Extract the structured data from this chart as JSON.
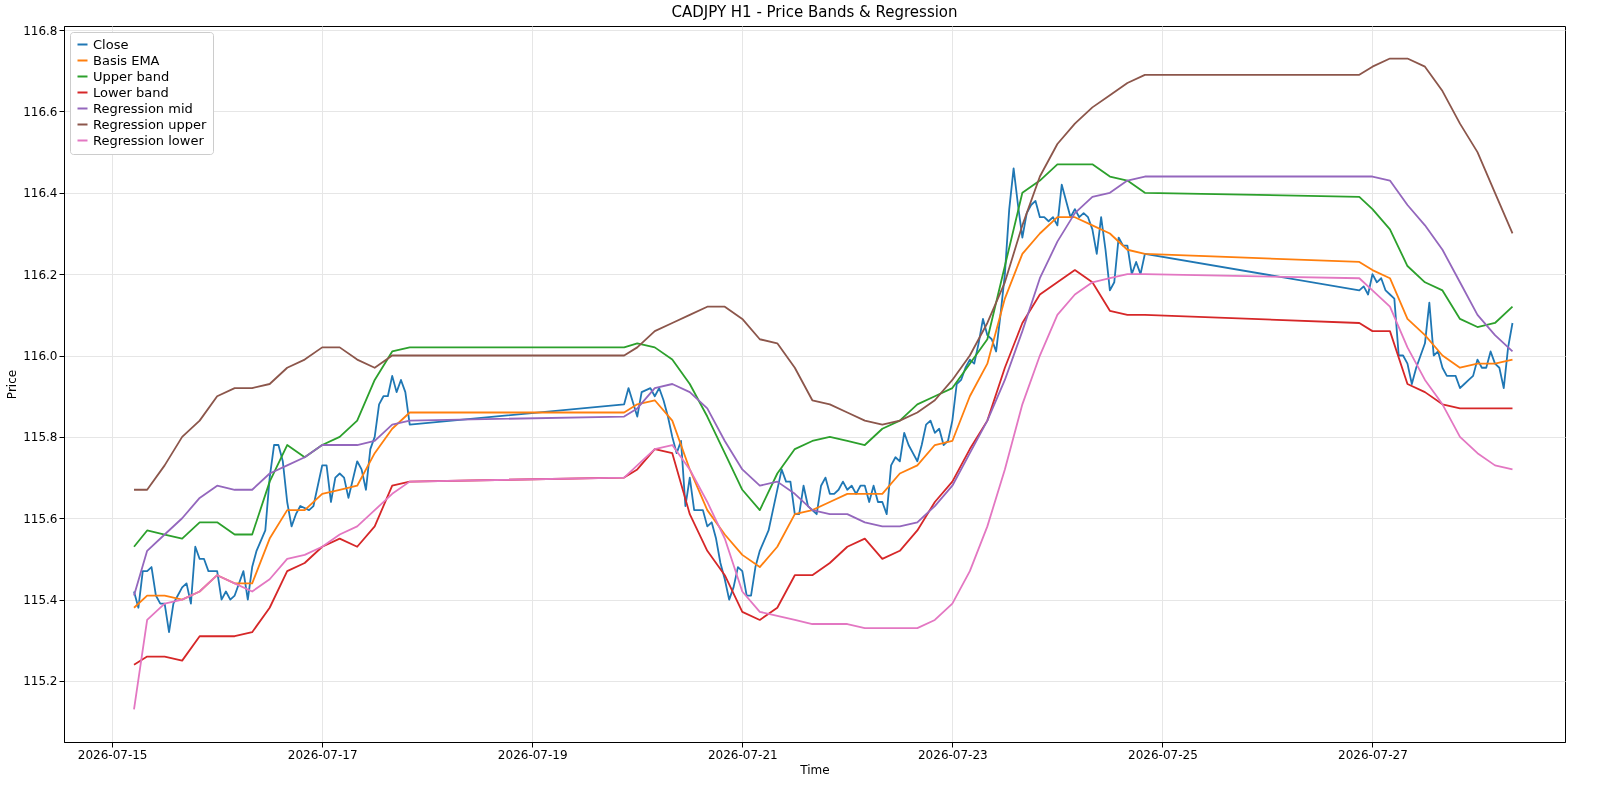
{
  "chart_data": {
    "type": "line",
    "title": "CADJPY H1 - Price Bands & Regression",
    "xlabel": "Time",
    "ylabel": "Price",
    "xlim": [
      "2026-07-14T13:00",
      "2026-07-28T20:00"
    ],
    "ylim": [
      115.05,
      116.81
    ],
    "xticks": [
      "2026-07-15",
      "2026-07-17",
      "2026-07-19",
      "2026-07-21",
      "2026-07-23",
      "2026-07-25",
      "2026-07-27"
    ],
    "yticks": [
      115.2,
      115.4,
      115.6,
      115.8,
      {
        "value": 116.0,
        "label": "116.0"
      },
      116.2,
      116.4,
      116.6,
      116.8
    ],
    "grid": true,
    "legend": "top left",
    "x": [
      "2026-07-15T05:00",
      "2026-07-15T08:00",
      "2026-07-15T12:00",
      "2026-07-15T16:00",
      "2026-07-15T20:00",
      "2026-07-16T00:00",
      "2026-07-16T04:00",
      "2026-07-16T08:00",
      "2026-07-16T12:00",
      "2026-07-16T16:00",
      "2026-07-16T20:00",
      "2026-07-17T00:00",
      "2026-07-17T04:00",
      "2026-07-17T08:00",
      "2026-07-17T12:00",
      "2026-07-17T16:00",
      "2026-07-17T20:00",
      "2026-07-19T21:00",
      "2026-07-20T00:00",
      "2026-07-20T04:00",
      "2026-07-20T08:00",
      "2026-07-20T12:00",
      "2026-07-20T16:00",
      "2026-07-20T20:00",
      "2026-07-21T00:00",
      "2026-07-21T04:00",
      "2026-07-21T08:00",
      "2026-07-21T12:00",
      "2026-07-21T16:00",
      "2026-07-21T20:00",
      "2026-07-22T00:00",
      "2026-07-22T04:00",
      "2026-07-22T08:00",
      "2026-07-22T12:00",
      "2026-07-22T16:00",
      "2026-07-22T20:00",
      "2026-07-23T00:00",
      "2026-07-23T04:00",
      "2026-07-23T08:00",
      "2026-07-23T12:00",
      "2026-07-23T16:00",
      "2026-07-23T20:00",
      "2026-07-24T00:00",
      "2026-07-24T04:00",
      "2026-07-24T08:00",
      "2026-07-24T12:00",
      "2026-07-24T16:00",
      "2026-07-24T20:00",
      "2026-07-26T21:00",
      "2026-07-27T00:00",
      "2026-07-27T04:00",
      "2026-07-27T08:00",
      "2026-07-27T12:00",
      "2026-07-27T16:00",
      "2026-07-27T20:00",
      "2026-07-28T00:00",
      "2026-07-28T04:00",
      "2026-07-28T08:00"
    ],
    "series": [
      {
        "name": "Close",
        "color": "#1f77b4",
        "x": [
          "2026-07-15T05:00",
          "2026-07-15T06:00",
          "2026-07-15T07:00",
          "2026-07-15T08:00",
          "2026-07-15T09:00",
          "2026-07-15T10:00",
          "2026-07-15T11:00",
          "2026-07-15T12:00",
          "2026-07-15T13:00",
          "2026-07-15T14:00",
          "2026-07-15T15:00",
          "2026-07-15T16:00",
          "2026-07-15T17:00",
          "2026-07-15T18:00",
          "2026-07-15T19:00",
          "2026-07-15T20:00",
          "2026-07-15T21:00",
          "2026-07-15T22:00",
          "2026-07-16T00:00",
          "2026-07-16T01:00",
          "2026-07-16T02:00",
          "2026-07-16T03:00",
          "2026-07-16T04:00",
          "2026-07-16T06:00",
          "2026-07-16T07:00",
          "2026-07-16T08:00",
          "2026-07-16T09:00",
          "2026-07-16T11:00",
          "2026-07-16T12:00",
          "2026-07-16T13:00",
          "2026-07-16T14:00",
          "2026-07-16T15:00",
          "2026-07-16T16:00",
          "2026-07-16T17:00",
          "2026-07-16T18:00",
          "2026-07-16T19:00",
          "2026-07-16T21:00",
          "2026-07-16T22:00",
          "2026-07-17T00:00",
          "2026-07-17T01:00",
          "2026-07-17T02:00",
          "2026-07-17T03:00",
          "2026-07-17T04:00",
          "2026-07-17T05:00",
          "2026-07-17T06:00",
          "2026-07-17T08:00",
          "2026-07-17T09:00",
          "2026-07-17T10:00",
          "2026-07-17T11:00",
          "2026-07-17T12:00",
          "2026-07-17T13:00",
          "2026-07-17T14:00",
          "2026-07-17T15:00",
          "2026-07-17T16:00",
          "2026-07-17T17:00",
          "2026-07-17T18:00",
          "2026-07-17T19:00",
          "2026-07-17T20:00",
          "2026-07-19T21:00",
          "2026-07-19T22:00",
          "2026-07-20T00:00",
          "2026-07-20T01:00",
          "2026-07-20T03:00",
          "2026-07-20T04:00",
          "2026-07-20T05:00",
          "2026-07-20T06:00",
          "2026-07-20T07:00",
          "2026-07-20T08:00",
          "2026-07-20T09:00",
          "2026-07-20T10:00",
          "2026-07-20T11:00",
          "2026-07-20T12:00",
          "2026-07-20T13:00",
          "2026-07-20T14:00",
          "2026-07-20T15:00",
          "2026-07-20T16:00",
          "2026-07-20T17:00",
          "2026-07-20T18:00",
          "2026-07-20T19:00",
          "2026-07-20T20:00",
          "2026-07-20T21:00",
          "2026-07-20T22:00",
          "2026-07-20T23:00",
          "2026-07-21T00:00",
          "2026-07-21T01:00",
          "2026-07-21T02:00",
          "2026-07-21T03:00",
          "2026-07-21T04:00",
          "2026-07-21T06:00",
          "2026-07-21T07:00",
          "2026-07-21T09:00",
          "2026-07-21T10:00",
          "2026-07-21T11:00",
          "2026-07-21T12:00",
          "2026-07-21T13:00",
          "2026-07-21T14:00",
          "2026-07-21T15:00",
          "2026-07-21T16:00",
          "2026-07-21T17:00",
          "2026-07-21T18:00",
          "2026-07-21T19:00",
          "2026-07-21T20:00",
          "2026-07-21T21:00",
          "2026-07-21T22:00",
          "2026-07-21T23:00",
          "2026-07-22T00:00",
          "2026-07-22T01:00",
          "2026-07-22T02:00",
          "2026-07-22T03:00",
          "2026-07-22T04:00",
          "2026-07-22T05:00",
          "2026-07-22T06:00",
          "2026-07-22T07:00",
          "2026-07-22T08:00",
          "2026-07-22T09:00",
          "2026-07-22T10:00",
          "2026-07-22T11:00",
          "2026-07-22T12:00",
          "2026-07-22T13:00",
          "2026-07-22T14:00",
          "2026-07-22T15:00",
          "2026-07-22T16:00",
          "2026-07-22T17:00",
          "2026-07-22T18:00",
          "2026-07-22T19:00",
          "2026-07-22T20:00",
          "2026-07-22T21:00",
          "2026-07-22T22:00",
          "2026-07-22T23:00",
          "2026-07-23T00:00",
          "2026-07-23T01:00",
          "2026-07-23T02:00",
          "2026-07-23T03:00",
          "2026-07-23T04:00",
          "2026-07-23T05:00",
          "2026-07-23T06:00",
          "2026-07-23T07:00",
          "2026-07-23T08:00",
          "2026-07-23T09:00",
          "2026-07-23T10:00",
          "2026-07-23T11:00",
          "2026-07-23T12:00",
          "2026-07-23T13:00",
          "2026-07-23T14:00",
          "2026-07-23T15:00",
          "2026-07-23T16:00",
          "2026-07-23T17:00",
          "2026-07-23T18:00",
          "2026-07-23T19:00",
          "2026-07-23T20:00",
          "2026-07-23T21:00",
          "2026-07-23T22:00",
          "2026-07-23T23:00",
          "2026-07-24T00:00",
          "2026-07-24T01:00",
          "2026-07-24T02:00",
          "2026-07-24T03:00",
          "2026-07-24T04:00",
          "2026-07-24T05:00",
          "2026-07-24T06:00",
          "2026-07-24T07:00",
          "2026-07-24T08:00",
          "2026-07-24T09:00",
          "2026-07-24T10:00",
          "2026-07-24T11:00",
          "2026-07-24T12:00",
          "2026-07-24T13:00",
          "2026-07-24T14:00",
          "2026-07-24T15:00",
          "2026-07-24T16:00",
          "2026-07-24T17:00",
          "2026-07-24T18:00",
          "2026-07-24T19:00",
          "2026-07-24T20:00",
          "2026-07-26T21:00",
          "2026-07-26T22:00",
          "2026-07-26T23:00",
          "2026-07-27T00:00",
          "2026-07-27T01:00",
          "2026-07-27T02:00",
          "2026-07-27T03:00",
          "2026-07-27T04:00",
          "2026-07-27T05:00",
          "2026-07-27T06:00",
          "2026-07-27T07:00",
          "2026-07-27T08:00",
          "2026-07-27T09:00",
          "2026-07-27T10:00",
          "2026-07-27T11:00",
          "2026-07-27T12:00",
          "2026-07-27T13:00",
          "2026-07-27T14:00",
          "2026-07-27T15:00",
          "2026-07-27T16:00",
          "2026-07-27T17:00",
          "2026-07-27T18:00",
          "2026-07-27T19:00",
          "2026-07-27T20:00",
          "2026-07-27T21:00",
          "2026-07-27T22:00",
          "2026-07-27T23:00",
          "2026-07-28T00:00",
          "2026-07-28T01:00",
          "2026-07-28T02:00",
          "2026-07-28T03:00",
          "2026-07-28T04:00",
          "2026-07-28T05:00",
          "2026-07-28T06:00",
          "2026-07-28T07:00",
          "2026-07-28T08:00"
        ],
        "values": [
          115.42,
          115.38,
          115.47,
          115.47,
          115.48,
          115.41,
          115.39,
          115.39,
          115.32,
          115.39,
          115.41,
          115.43,
          115.44,
          115.39,
          115.53,
          115.5,
          115.5,
          115.47,
          115.47,
          115.4,
          115.42,
          115.4,
          115.41,
          115.47,
          115.4,
          115.48,
          115.52,
          115.57,
          115.7,
          115.78,
          115.78,
          115.74,
          115.64,
          115.58,
          115.61,
          115.63,
          115.62,
          115.63,
          115.73,
          115.73,
          115.64,
          115.7,
          115.71,
          115.7,
          115.65,
          115.74,
          115.72,
          115.67,
          115.77,
          115.8,
          115.88,
          115.9,
          115.9,
          115.95,
          115.91,
          115.94,
          115.91,
          115.83,
          115.88,
          115.92,
          115.85,
          115.91,
          115.92,
          115.9,
          115.92,
          115.89,
          115.85,
          115.8,
          115.76,
          115.79,
          115.63,
          115.7,
          115.62,
          115.62,
          115.62,
          115.58,
          115.59,
          115.55,
          115.49,
          115.45,
          115.4,
          115.43,
          115.48,
          115.47,
          115.41,
          115.41,
          115.48,
          115.52,
          115.57,
          115.62,
          115.72,
          115.69,
          115.69,
          115.61,
          115.61,
          115.68,
          115.63,
          115.62,
          115.61,
          115.68,
          115.7,
          115.66,
          115.66,
          115.67,
          115.69,
          115.67,
          115.68,
          115.66,
          115.68,
          115.68,
          115.64,
          115.68,
          115.64,
          115.64,
          115.61,
          115.73,
          115.75,
          115.74,
          115.81,
          115.78,
          115.76,
          115.74,
          115.78,
          115.83,
          115.84,
          115.81,
          115.82,
          115.78,
          115.79,
          115.84,
          115.93,
          115.94,
          115.97,
          115.99,
          115.98,
          116.03,
          116.09,
          116.05,
          116.04,
          116.01,
          116.1,
          116.2,
          116.36,
          116.46,
          116.37,
          116.29,
          116.35,
          116.37,
          116.38,
          116.34,
          116.34,
          116.33,
          116.34,
          116.32,
          116.42,
          116.38,
          116.34,
          116.36,
          116.34,
          116.35,
          116.34,
          116.31,
          116.25,
          116.34,
          116.26,
          116.16,
          116.18,
          116.29,
          116.27,
          116.27,
          116.2,
          116.23,
          116.2,
          116.25,
          116.16,
          116.17,
          116.15,
          116.2,
          116.18,
          116.19,
          116.16,
          116.15,
          116.14,
          116.0,
          116.0,
          115.98,
          115.93,
          115.97,
          116.0,
          116.03,
          116.13,
          116.0,
          116.01,
          115.97,
          115.95,
          115.95,
          115.95,
          115.92,
          115.93,
          115.94,
          115.95,
          115.99,
          115.97,
          115.97,
          116.01,
          115.98,
          115.97,
          115.92,
          116.02,
          116.08
        ]
      },
      {
        "name": "Basis EMA",
        "color": "#ff7f0e",
        "values": [
          115.38,
          115.41,
          115.41,
          115.4,
          115.42,
          115.46,
          115.44,
          115.44,
          115.55,
          115.62,
          115.62,
          115.66,
          115.67,
          115.68,
          115.76,
          115.82,
          115.86,
          115.86,
          115.88,
          115.89,
          115.84,
          115.72,
          115.62,
          115.56,
          115.51,
          115.48,
          115.53,
          115.61,
          115.62,
          115.64,
          115.66,
          115.66,
          115.66,
          115.71,
          115.73,
          115.78,
          115.79,
          115.9,
          115.98,
          116.14,
          116.25,
          116.3,
          116.34,
          116.34,
          116.32,
          116.3,
          116.26,
          116.25,
          116.23,
          116.21,
          116.19,
          116.09,
          116.05,
          116.0,
          115.97,
          115.98,
          115.98,
          115.99
        ]
      },
      {
        "name": "Upper band",
        "color": "#2ca02c",
        "values": [
          115.53,
          115.57,
          115.56,
          115.55,
          115.59,
          115.59,
          115.56,
          115.56,
          115.69,
          115.78,
          115.75,
          115.78,
          115.8,
          115.84,
          115.94,
          116.01,
          116.02,
          116.02,
          116.03,
          116.02,
          115.99,
          115.93,
          115.85,
          115.76,
          115.67,
          115.62,
          115.71,
          115.77,
          115.79,
          115.8,
          115.79,
          115.78,
          115.82,
          115.84,
          115.88,
          115.9,
          115.92,
          115.98,
          116.04,
          116.22,
          116.4,
          116.43,
          116.47,
          116.47,
          116.47,
          116.44,
          116.43,
          116.4,
          116.39,
          116.36,
          116.31,
          116.22,
          116.18,
          116.16,
          116.09,
          116.07,
          116.08,
          116.12
        ]
      },
      {
        "name": "Lower band",
        "color": "#d62728",
        "values": [
          115.24,
          115.26,
          115.26,
          115.25,
          115.31,
          115.31,
          115.31,
          115.32,
          115.38,
          115.47,
          115.49,
          115.53,
          115.55,
          115.53,
          115.58,
          115.68,
          115.69,
          115.7,
          115.72,
          115.77,
          115.76,
          115.61,
          115.52,
          115.46,
          115.37,
          115.35,
          115.38,
          115.46,
          115.46,
          115.49,
          115.53,
          115.55,
          115.5,
          115.52,
          115.57,
          115.64,
          115.69,
          115.77,
          115.84,
          115.97,
          116.08,
          116.15,
          116.18,
          116.21,
          116.18,
          116.11,
          116.1,
          116.1,
          116.08,
          116.06,
          116.06,
          115.93,
          115.91,
          115.88,
          115.87,
          115.87,
          115.87,
          115.87
        ]
      },
      {
        "name": "Regression mid",
        "color": "#9467bd",
        "values": [
          115.41,
          115.52,
          115.56,
          115.6,
          115.65,
          115.68,
          115.67,
          115.67,
          115.71,
          115.73,
          115.75,
          115.78,
          115.78,
          115.78,
          115.79,
          115.83,
          115.84,
          115.85,
          115.87,
          115.92,
          115.93,
          115.91,
          115.87,
          115.79,
          115.72,
          115.68,
          115.69,
          115.66,
          115.62,
          115.61,
          115.61,
          115.59,
          115.58,
          115.58,
          115.59,
          115.63,
          115.68,
          115.76,
          115.84,
          115.94,
          116.06,
          116.19,
          116.28,
          116.35,
          116.39,
          116.4,
          116.43,
          116.44,
          116.44,
          116.44,
          116.43,
          116.37,
          116.32,
          116.26,
          116.18,
          116.1,
          116.05,
          116.01
        ]
      },
      {
        "name": "Regression upper",
        "color": "#8c564b",
        "values": [
          115.67,
          115.67,
          115.73,
          115.8,
          115.84,
          115.9,
          115.92,
          115.92,
          115.93,
          115.97,
          115.99,
          116.02,
          116.02,
          115.99,
          115.97,
          116.0,
          116.0,
          116.0,
          116.02,
          116.06,
          116.08,
          116.1,
          116.12,
          116.12,
          116.09,
          116.04,
          116.03,
          115.97,
          115.89,
          115.88,
          115.86,
          115.84,
          115.83,
          115.84,
          115.86,
          115.89,
          115.94,
          116.0,
          116.08,
          116.18,
          116.32,
          116.44,
          116.52,
          116.57,
          116.61,
          116.64,
          116.67,
          116.69,
          116.69,
          116.71,
          116.73,
          116.73,
          116.71,
          116.65,
          116.57,
          116.5,
          116.4,
          116.3
        ]
      },
      {
        "name": "Regression lower",
        "color": "#e377c2",
        "values": [
          115.13,
          115.35,
          115.39,
          115.4,
          115.42,
          115.46,
          115.44,
          115.42,
          115.45,
          115.5,
          115.51,
          115.53,
          115.56,
          115.58,
          115.62,
          115.66,
          115.69,
          115.7,
          115.73,
          115.77,
          115.78,
          115.72,
          115.64,
          115.55,
          115.42,
          115.37,
          115.36,
          115.35,
          115.34,
          115.34,
          115.34,
          115.33,
          115.33,
          115.33,
          115.33,
          115.35,
          115.39,
          115.47,
          115.58,
          115.72,
          115.88,
          116.0,
          116.1,
          116.15,
          116.18,
          116.19,
          116.2,
          116.2,
          116.19,
          116.16,
          116.12,
          116.02,
          115.94,
          115.88,
          115.8,
          115.76,
          115.73,
          115.72
        ]
      }
    ]
  }
}
